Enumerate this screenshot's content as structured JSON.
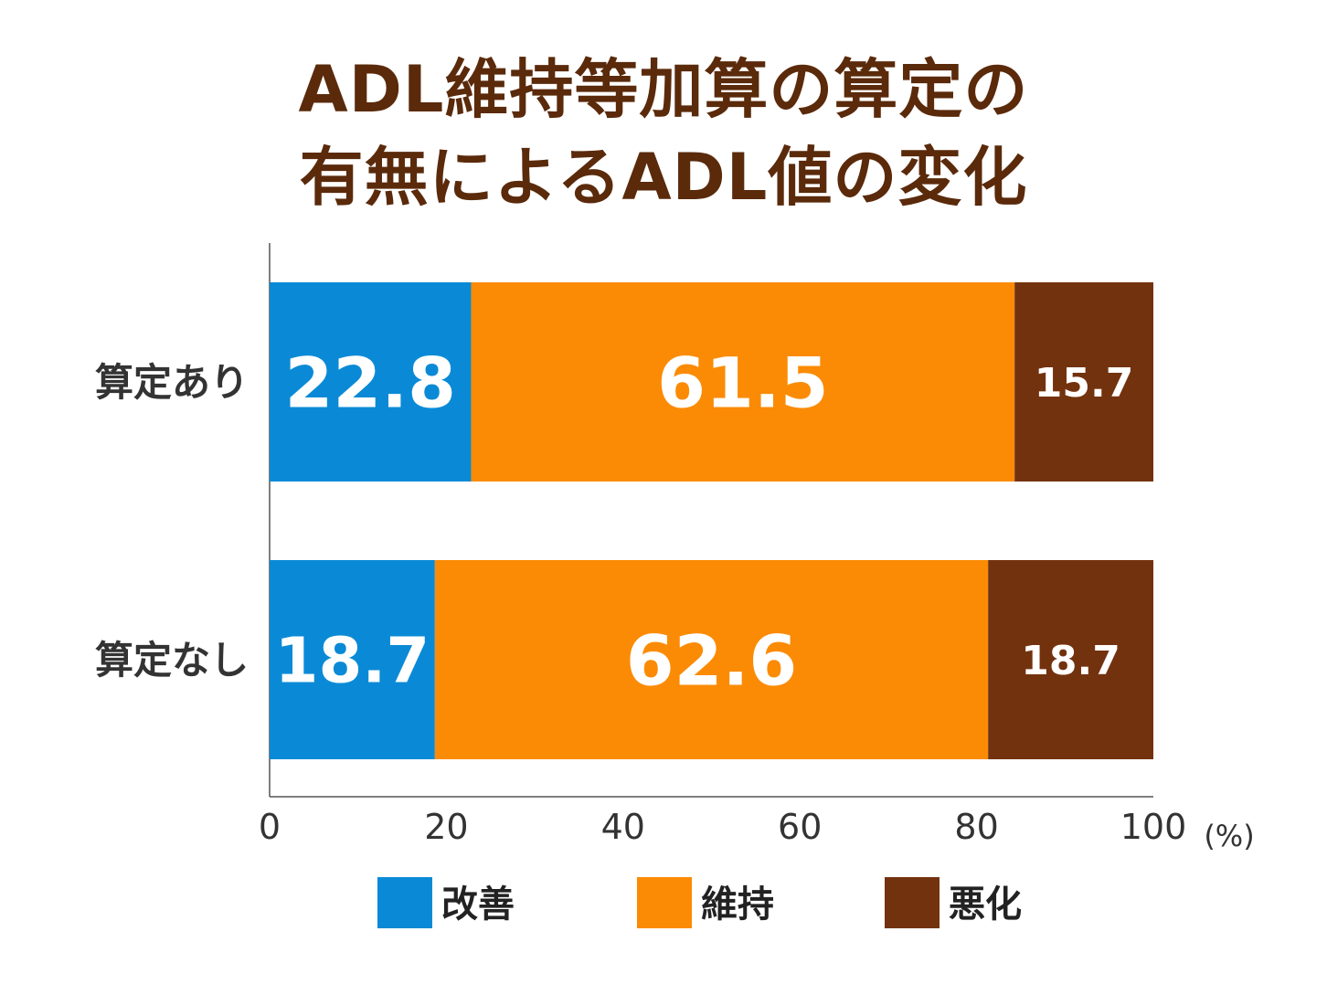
{
  "chart_data": {
    "type": "bar",
    "orientation": "horizontal",
    "stacked": true,
    "title_lines": [
      "ADL維持等加算の算定の",
      "有無によるADL値の変化"
    ],
    "categories": [
      "算定あり",
      "算定なし"
    ],
    "series": [
      {
        "name": "改善",
        "values": [
          22.8,
          18.7
        ],
        "color": "#0a8ad6"
      },
      {
        "name": "維持",
        "values": [
          61.5,
          62.6
        ],
        "color": "#fb8b05"
      },
      {
        "name": "悪化",
        "values": [
          15.7,
          18.7
        ],
        "color": "#73320e"
      }
    ],
    "xlim": [
      0,
      100
    ],
    "xticks": [
      "0",
      "20",
      "40",
      "60",
      "80",
      "100"
    ],
    "x_unit": "(%)",
    "legend_position": "bottom",
    "grid": false
  }
}
